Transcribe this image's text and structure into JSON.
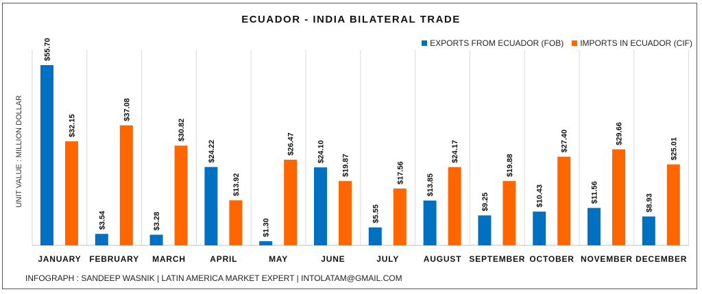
{
  "chart_data": {
    "type": "bar",
    "title": "ECUADOR - INDIA BILATERAL TRADE",
    "ylabel": "UNIT VALUE : MILLION DOLLAR",
    "xlabel": "",
    "ylim": [
      0,
      60
    ],
    "grid": "vertical category separators",
    "legend_position": "top-right",
    "categories": [
      "JANUARY",
      "FEBRUARY",
      "MARCH",
      "APRIL",
      "MAY",
      "JUNE",
      "JULY",
      "AUGUST",
      "SEPTEMBER",
      "OCTOBER",
      "NOVEMBER",
      "DECEMBER"
    ],
    "series": [
      {
        "name": "EXPORTS FROM ECUADOR (FOB)",
        "color": "#0070c0",
        "values": [
          55.7,
          3.54,
          3.28,
          24.22,
          1.3,
          24.1,
          5.55,
          13.85,
          9.25,
          10.43,
          11.56,
          8.93
        ]
      },
      {
        "name": "IMPORTS IN ECUADOR (CIF)",
        "color": "#ff6600",
        "values": [
          32.15,
          37.08,
          30.82,
          13.92,
          26.47,
          19.87,
          17.56,
          24.17,
          19.88,
          27.4,
          29.66,
          25.01
        ]
      }
    ]
  },
  "footer": "INFOGRAPH : SANDEEP WASNIK | LATIN AMERICA MARKET EXPERT | INTOLATAM@GMAIL.COM"
}
